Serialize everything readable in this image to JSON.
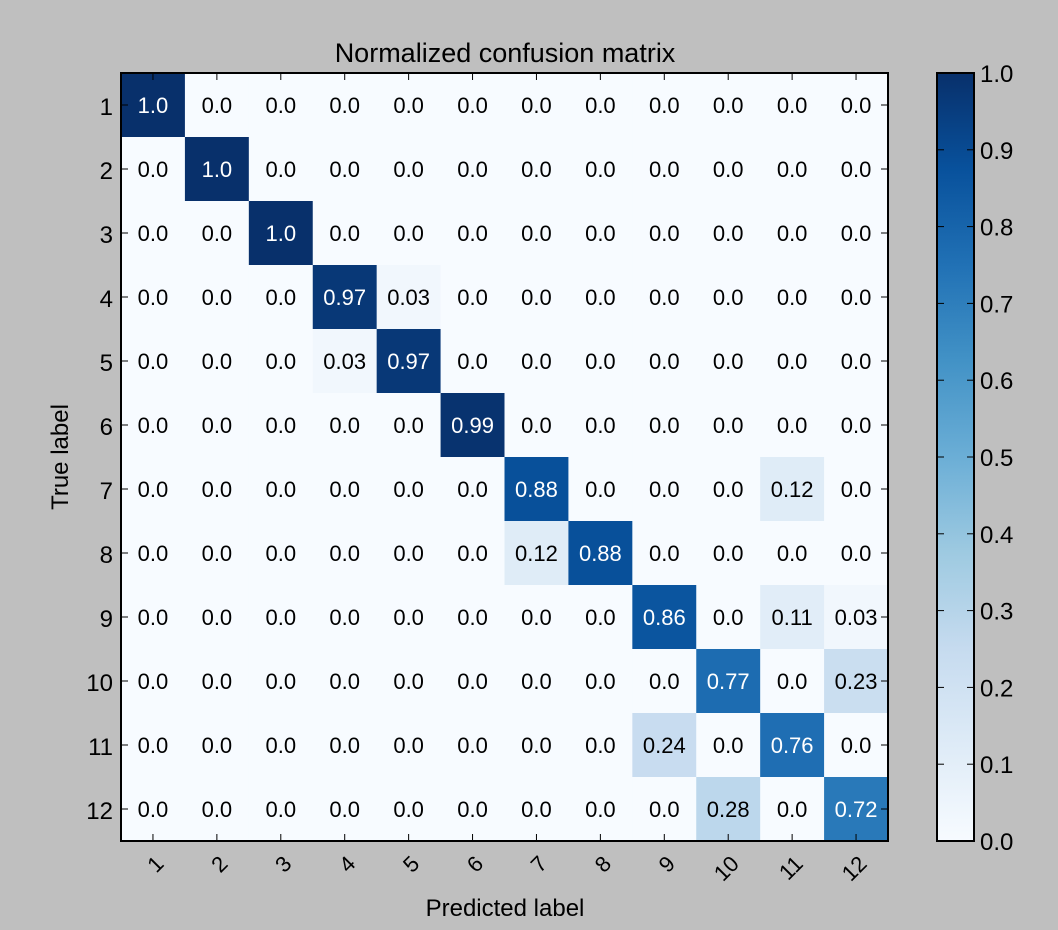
{
  "chart_data": {
    "type": "heatmap",
    "title": "Normalized confusion matrix",
    "xlabel": "Predicted label",
    "ylabel": "True label",
    "x_categories": [
      "1",
      "2",
      "3",
      "4",
      "5",
      "6",
      "7",
      "8",
      "9",
      "10",
      "11",
      "12"
    ],
    "y_categories": [
      "1",
      "2",
      "3",
      "4",
      "5",
      "6",
      "7",
      "8",
      "9",
      "10",
      "11",
      "12"
    ],
    "matrix": [
      [
        1.0,
        0.0,
        0.0,
        0.0,
        0.0,
        0.0,
        0.0,
        0.0,
        0.0,
        0.0,
        0.0,
        0.0
      ],
      [
        0.0,
        1.0,
        0.0,
        0.0,
        0.0,
        0.0,
        0.0,
        0.0,
        0.0,
        0.0,
        0.0,
        0.0
      ],
      [
        0.0,
        0.0,
        1.0,
        0.0,
        0.0,
        0.0,
        0.0,
        0.0,
        0.0,
        0.0,
        0.0,
        0.0
      ],
      [
        0.0,
        0.0,
        0.0,
        0.97,
        0.03,
        0.0,
        0.0,
        0.0,
        0.0,
        0.0,
        0.0,
        0.0
      ],
      [
        0.0,
        0.0,
        0.0,
        0.03,
        0.97,
        0.0,
        0.0,
        0.0,
        0.0,
        0.0,
        0.0,
        0.0
      ],
      [
        0.0,
        0.0,
        0.0,
        0.0,
        0.0,
        0.99,
        0.0,
        0.0,
        0.0,
        0.0,
        0.0,
        0.0
      ],
      [
        0.0,
        0.0,
        0.0,
        0.0,
        0.0,
        0.0,
        0.88,
        0.0,
        0.0,
        0.0,
        0.12,
        0.0
      ],
      [
        0.0,
        0.0,
        0.0,
        0.0,
        0.0,
        0.0,
        0.12,
        0.88,
        0.0,
        0.0,
        0.0,
        0.0
      ],
      [
        0.0,
        0.0,
        0.0,
        0.0,
        0.0,
        0.0,
        0.0,
        0.0,
        0.86,
        0.0,
        0.11,
        0.03
      ],
      [
        0.0,
        0.0,
        0.0,
        0.0,
        0.0,
        0.0,
        0.0,
        0.0,
        0.0,
        0.77,
        0.0,
        0.23
      ],
      [
        0.0,
        0.0,
        0.0,
        0.0,
        0.0,
        0.0,
        0.0,
        0.0,
        0.24,
        0.0,
        0.76,
        0.0
      ],
      [
        0.0,
        0.0,
        0.0,
        0.0,
        0.0,
        0.0,
        0.0,
        0.0,
        0.0,
        0.28,
        0.0,
        0.72
      ]
    ],
    "cell_labels": [
      [
        "1.0",
        "0.0",
        "0.0",
        "0.0",
        "0.0",
        "0.0",
        "0.0",
        "0.0",
        "0.0",
        "0.0",
        "0.0",
        "0.0"
      ],
      [
        "0.0",
        "1.0",
        "0.0",
        "0.0",
        "0.0",
        "0.0",
        "0.0",
        "0.0",
        "0.0",
        "0.0",
        "0.0",
        "0.0"
      ],
      [
        "0.0",
        "0.0",
        "1.0",
        "0.0",
        "0.0",
        "0.0",
        "0.0",
        "0.0",
        "0.0",
        "0.0",
        "0.0",
        "0.0"
      ],
      [
        "0.0",
        "0.0",
        "0.0",
        "0.97",
        "0.03",
        "0.0",
        "0.0",
        "0.0",
        "0.0",
        "0.0",
        "0.0",
        "0.0"
      ],
      [
        "0.0",
        "0.0",
        "0.0",
        "0.03",
        "0.97",
        "0.0",
        "0.0",
        "0.0",
        "0.0",
        "0.0",
        "0.0",
        "0.0"
      ],
      [
        "0.0",
        "0.0",
        "0.0",
        "0.0",
        "0.0",
        "0.99",
        "0.0",
        "0.0",
        "0.0",
        "0.0",
        "0.0",
        "0.0"
      ],
      [
        "0.0",
        "0.0",
        "0.0",
        "0.0",
        "0.0",
        "0.0",
        "0.88",
        "0.0",
        "0.0",
        "0.0",
        "0.12",
        "0.0"
      ],
      [
        "0.0",
        "0.0",
        "0.0",
        "0.0",
        "0.0",
        "0.0",
        "0.12",
        "0.88",
        "0.0",
        "0.0",
        "0.0",
        "0.0"
      ],
      [
        "0.0",
        "0.0",
        "0.0",
        "0.0",
        "0.0",
        "0.0",
        "0.0",
        "0.0",
        "0.86",
        "0.0",
        "0.11",
        "0.03"
      ],
      [
        "0.0",
        "0.0",
        "0.0",
        "0.0",
        "0.0",
        "0.0",
        "0.0",
        "0.0",
        "0.0",
        "0.77",
        "0.0",
        "0.23"
      ],
      [
        "0.0",
        "0.0",
        "0.0",
        "0.0",
        "0.0",
        "0.0",
        "0.0",
        "0.0",
        "0.24",
        "0.0",
        "0.76",
        "0.0"
      ],
      [
        "0.0",
        "0.0",
        "0.0",
        "0.0",
        "0.0",
        "0.0",
        "0.0",
        "0.0",
        "0.0",
        "0.28",
        "0.0",
        "0.72"
      ]
    ],
    "colorbar": {
      "range": [
        0.0,
        1.0
      ],
      "ticks": [
        "0.0",
        "0.1",
        "0.2",
        "0.3",
        "0.4",
        "0.5",
        "0.6",
        "0.7",
        "0.8",
        "0.9",
        "1.0"
      ]
    },
    "colormap": "Blues",
    "grid": false,
    "x_tick_rotation_deg": 45,
    "colors": {
      "figure_background": "#bfbfbf",
      "cmap_low": "#f7fbff",
      "cmap_high": "#08306b",
      "text_dark": "#000000",
      "text_light": "#ffffff"
    }
  }
}
